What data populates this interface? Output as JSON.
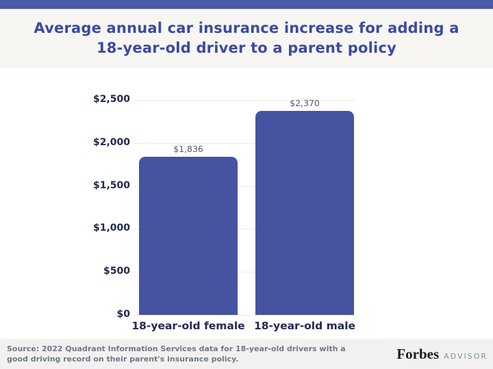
{
  "header": {
    "title_lines": [
      "Average annual car insurance increase for adding a",
      "18-year-old driver to a parent policy"
    ]
  },
  "chart_data": {
    "type": "bar",
    "title": "Average annual car insurance increase for adding a 18-year-old driver to a parent policy",
    "categories": [
      "18-year-old female",
      "18-year-old male"
    ],
    "values": [
      1836,
      2370
    ],
    "value_labels": [
      "$1,836",
      "$2,370"
    ],
    "y_ticks": [
      "$0",
      "$500",
      "$1,000",
      "$1,500",
      "$2,000",
      "$2,500"
    ],
    "y_tick_values": [
      0,
      500,
      1000,
      1500,
      2000,
      2500
    ],
    "xlabel": "",
    "ylabel": "",
    "ylim": [
      0,
      2500
    ],
    "grid": true,
    "legend": false,
    "bar_color": "#4553a1"
  },
  "colors": {
    "brand_bar": "#4a59a8",
    "title_text": "#3b4aa2",
    "bar": "#4553a1",
    "axis_text": "#232950"
  },
  "footer": {
    "source_line1": "Source: 2022 Quadrant Information Services data for 18-year-old drivers with a",
    "source_line2": "good driving record on their parent's insurance policy.",
    "brand_name": "Forbes",
    "brand_suffix": "ADVISOR"
  }
}
